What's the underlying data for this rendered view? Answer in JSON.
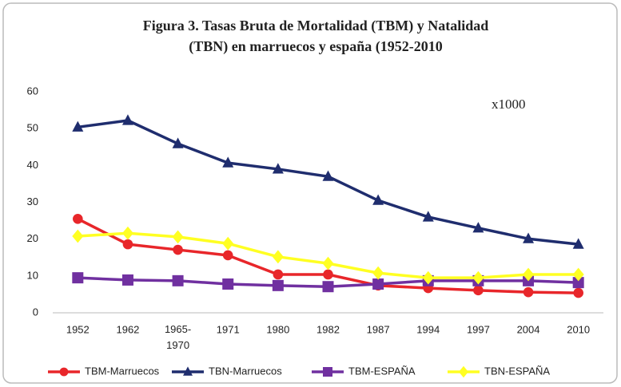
{
  "chart_data": {
    "type": "line",
    "title": [
      "Figura 3. Tasas Bruta de Mortalidad  (TBM) y Natalidad",
      "(TBN) en marruecos y españa (1952-2010"
    ],
    "annotation": "x1000",
    "categories": [
      "1952",
      "1962",
      "1965-1970",
      "1971",
      "1980",
      "1982",
      "1987",
      "1994",
      "1997",
      "2004",
      "2010"
    ],
    "series": [
      {
        "name": "TBM-Marruecos",
        "color": "#e8262a",
        "marker": "circle",
        "values": [
          25.5,
          18.6,
          17.1,
          15.6,
          10.4,
          10.4,
          7.4,
          6.7,
          6.1,
          5.6,
          5.4
        ]
      },
      {
        "name": "TBN-Marruecos",
        "color": "#1f2d6e",
        "marker": "triangle",
        "values": [
          50.4,
          52.2,
          45.9,
          40.7,
          39,
          37,
          30.5,
          26,
          23,
          20.1,
          18.6
        ]
      },
      {
        "name": "TBM-ESPAÑA",
        "color": "#7030a0",
        "marker": "square",
        "values": [
          9.5,
          8.9,
          8.7,
          7.8,
          7.4,
          7.1,
          7.8,
          8.7,
          8.7,
          8.7,
          8.2
        ]
      },
      {
        "name": "TBN-ESPAÑA",
        "color": "#ffff22",
        "marker": "diamond",
        "values": [
          20.8,
          21.6,
          20.6,
          18.8,
          15.2,
          13.4,
          10.8,
          9.5,
          9.5,
          10.4,
          10.4
        ]
      }
    ],
    "ylim": [
      0,
      60
    ],
    "yticks": [
      0,
      10,
      20,
      30,
      40,
      50,
      60
    ],
    "grid": false,
    "legend": "bottom"
  }
}
